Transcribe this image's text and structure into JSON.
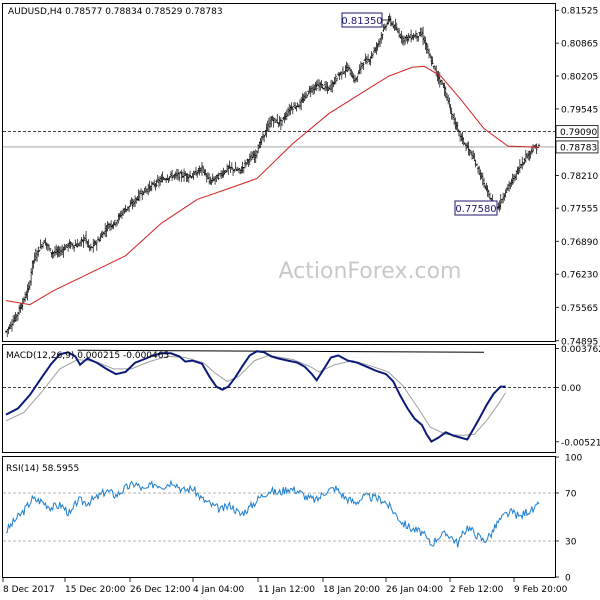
{
  "chart_data": [
    {
      "type": "bar",
      "subtype": "ohlc",
      "title": "AUDUSD,H4  0.78577 0.78834 0.78529 0.78783",
      "watermark": "ActionForex.com",
      "ylim": [
        0.7489,
        0.8165
      ],
      "y_ticks": [
        "0.81525",
        "0.80865",
        "0.80205",
        "0.79545",
        "0.78210",
        "0.77555",
        "0.76890",
        "0.76230",
        "0.75565",
        "0.74895"
      ],
      "x_ticks": [
        "8 Dec 2017",
        "15 Dec 20:00",
        "26 Dec 12:00",
        "4 Jan 04:00",
        "11 Jan 12:00",
        "18 Jan 20:00",
        "26 Jan 04:00",
        "2 Feb 12:00",
        "9 Feb 20:00"
      ],
      "levels": {
        "dashed": "0.79090",
        "current": "0.78783"
      },
      "annotations": [
        "0.81350",
        "0.77580"
      ],
      "series_path": [
        [
          0,
          0.7508
        ],
        [
          8,
          0.7537
        ],
        [
          14,
          0.7568
        ],
        [
          19,
          0.7595
        ],
        [
          22,
          0.7645
        ],
        [
          27,
          0.7672
        ],
        [
          32,
          0.769
        ],
        [
          38,
          0.7666
        ],
        [
          45,
          0.7668
        ],
        [
          52,
          0.7682
        ],
        [
          60,
          0.7681
        ],
        [
          66,
          0.7696
        ],
        [
          70,
          0.7673
        ],
        [
          78,
          0.7694
        ],
        [
          85,
          0.772
        ],
        [
          91,
          0.7726
        ],
        [
          98,
          0.775
        ],
        [
          106,
          0.7765
        ],
        [
          112,
          0.7784
        ],
        [
          118,
          0.7794
        ],
        [
          124,
          0.7803
        ],
        [
          130,
          0.7813
        ],
        [
          138,
          0.782
        ],
        [
          148,
          0.7822
        ],
        [
          156,
          0.782
        ],
        [
          164,
          0.7836
        ],
        [
          170,
          0.7808
        ],
        [
          178,
          0.782
        ],
        [
          186,
          0.7836
        ],
        [
          196,
          0.783
        ],
        [
          202,
          0.7852
        ],
        [
          208,
          0.786
        ],
        [
          214,
          0.7894
        ],
        [
          222,
          0.7933
        ],
        [
          230,
          0.7927
        ],
        [
          238,
          0.7957
        ],
        [
          246,
          0.7964
        ],
        [
          254,
          0.7993
        ],
        [
          262,
          0.8003
        ],
        [
          270,
          0.7994
        ],
        [
          278,
          0.8023
        ],
        [
          286,
          0.8037
        ],
        [
          292,
          0.801
        ],
        [
          298,
          0.8047
        ],
        [
          304,
          0.8055
        ],
        [
          310,
          0.808
        ],
        [
          316,
          0.8113
        ],
        [
          320,
          0.8135
        ],
        [
          326,
          0.8115
        ],
        [
          332,
          0.8095
        ],
        [
          340,
          0.81
        ],
        [
          348,
          0.8105
        ],
        [
          354,
          0.806
        ],
        [
          360,
          0.8026
        ],
        [
          366,
          0.8
        ],
        [
          372,
          0.795
        ],
        [
          378,
          0.791
        ],
        [
          384,
          0.7884
        ],
        [
          390,
          0.786
        ],
        [
          396,
          0.7828
        ],
        [
          402,
          0.779
        ],
        [
          408,
          0.7763
        ],
        [
          412,
          0.7758
        ],
        [
          418,
          0.779
        ],
        [
          424,
          0.7812
        ],
        [
          430,
          0.784
        ],
        [
          436,
          0.7862
        ],
        [
          442,
          0.7877
        ],
        [
          446,
          0.7878
        ]
      ],
      "ma_path": [
        [
          0,
          0.757
        ],
        [
          20,
          0.7562
        ],
        [
          40,
          0.759
        ],
        [
          70,
          0.7625
        ],
        [
          100,
          0.766
        ],
        [
          130,
          0.7725
        ],
        [
          160,
          0.7773
        ],
        [
          190,
          0.7798
        ],
        [
          210,
          0.7815
        ],
        [
          240,
          0.7885
        ],
        [
          270,
          0.7945
        ],
        [
          300,
          0.799
        ],
        [
          320,
          0.802
        ],
        [
          340,
          0.8038
        ],
        [
          350,
          0.804
        ],
        [
          364,
          0.802
        ],
        [
          380,
          0.7975
        ],
        [
          400,
          0.7915
        ],
        [
          420,
          0.788
        ],
        [
          446,
          0.7878
        ]
      ]
    },
    {
      "type": "line",
      "title": "MACD(12,26,9) 0.000215 -0.000465",
      "ylim": [
        -0.0062,
        0.0041
      ],
      "y_ticks": [
        "0.003762",
        "0.00",
        "-0.005216"
      ],
      "series": [
        {
          "values": [
            [
              0,
              -0.0026
            ],
            [
              10,
              -0.002
            ],
            [
              20,
              -0.0007
            ],
            [
              30,
              0.001
            ],
            [
              38,
              0.0023
            ],
            [
              45,
              0.0032
            ],
            [
              52,
              0.0034
            ],
            [
              58,
              0.003
            ],
            [
              62,
              0.0022
            ],
            [
              68,
              0.0028
            ],
            [
              76,
              0.0024
            ],
            [
              84,
              0.0018
            ],
            [
              92,
              0.0013
            ],
            [
              100,
              0.0015
            ],
            [
              108,
              0.0024
            ],
            [
              115,
              0.0027
            ],
            [
              123,
              0.0031
            ],
            [
              130,
              0.0033
            ],
            [
              138,
              0.0033
            ],
            [
              145,
              0.003
            ],
            [
              150,
              0.0025
            ],
            [
              156,
              0.0026
            ],
            [
              164,
              0.0023
            ],
            [
              170,
              0.0011
            ],
            [
              176,
              0.0001
            ],
            [
              181,
              -0.0002
            ],
            [
              186,
              0.0001
            ],
            [
              192,
              0.001
            ],
            [
              198,
              0.0021
            ],
            [
              204,
              0.0031
            ],
            [
              210,
              0.0035
            ],
            [
              216,
              0.0034
            ],
            [
              222,
              0.003
            ],
            [
              228,
              0.0028
            ],
            [
              236,
              0.0026
            ],
            [
              244,
              0.0024
            ],
            [
              250,
              0.002
            ],
            [
              256,
              0.0013
            ],
            [
              260,
              0.0007
            ],
            [
              266,
              0.0018
            ],
            [
              272,
              0.0029
            ],
            [
              278,
              0.0031
            ],
            [
              286,
              0.0026
            ],
            [
              294,
              0.0024
            ],
            [
              302,
              0.002
            ],
            [
              310,
              0.0016
            ],
            [
              318,
              0.0013
            ],
            [
              324,
              0.0006
            ],
            [
              330,
              -0.0008
            ],
            [
              336,
              -0.002
            ],
            [
              342,
              -0.003
            ],
            [
              348,
              -0.0036
            ],
            [
              352,
              -0.0045
            ],
            [
              356,
              -0.0052
            ],
            [
              362,
              -0.0048
            ],
            [
              368,
              -0.0043
            ],
            [
              374,
              -0.0046
            ],
            [
              380,
              -0.0048
            ],
            [
              386,
              -0.005
            ],
            [
              390,
              -0.0042
            ],
            [
              396,
              -0.003
            ],
            [
              402,
              -0.0017
            ],
            [
              408,
              -0.0006
            ],
            [
              414,
              0.0001
            ],
            [
              418,
              0.0001
            ]
          ]
        },
        {
          "values": [
            [
              0,
              -0.0032
            ],
            [
              15,
              -0.0024
            ],
            [
              30,
              -0.0004
            ],
            [
              45,
              0.0018
            ],
            [
              60,
              0.0027
            ],
            [
              75,
              0.0025
            ],
            [
              90,
              0.0018
            ],
            [
              105,
              0.0018
            ],
            [
              120,
              0.0025
            ],
            [
              135,
              0.003
            ],
            [
              150,
              0.0029
            ],
            [
              165,
              0.0024
            ],
            [
              175,
              0.0014
            ],
            [
              185,
              0.0006
            ],
            [
              195,
              0.0011
            ],
            [
              208,
              0.0026
            ],
            [
              220,
              0.0031
            ],
            [
              240,
              0.0027
            ],
            [
              255,
              0.002
            ],
            [
              262,
              0.0015
            ],
            [
              275,
              0.0022
            ],
            [
              290,
              0.0026
            ],
            [
              305,
              0.0021
            ],
            [
              320,
              0.0015
            ],
            [
              332,
              0.0002
            ],
            [
              345,
              -0.002
            ],
            [
              355,
              -0.0038
            ],
            [
              368,
              -0.0045
            ],
            [
              382,
              -0.0046
            ],
            [
              392,
              -0.0045
            ],
            [
              402,
              -0.0032
            ],
            [
              412,
              -0.0016
            ],
            [
              418,
              -0.0005
            ]
          ]
        }
      ],
      "reference_line": [
        [
          60,
          0.0036
        ],
        [
          400,
          0.0034
        ]
      ]
    },
    {
      "type": "line",
      "title": "RSI(14) 58.5955",
      "ylim": [
        0,
        100
      ],
      "y_ticks": [
        "100",
        "70",
        "30",
        "0"
      ],
      "guides": [
        70,
        30
      ],
      "series": [
        {
          "values": [
            [
              0,
              38
            ],
            [
              8,
              48
            ],
            [
              15,
              55
            ],
            [
              22,
              65
            ],
            [
              30,
              63
            ],
            [
              38,
              58
            ],
            [
              46,
              60
            ],
            [
              54,
              52
            ],
            [
              60,
              64
            ],
            [
              68,
              62
            ],
            [
              76,
              66
            ],
            [
              84,
              72
            ],
            [
              92,
              68
            ],
            [
              100,
              74
            ],
            [
              108,
              78
            ],
            [
              116,
              72
            ],
            [
              124,
              78
            ],
            [
              132,
              76
            ],
            [
              140,
              80
            ],
            [
              148,
              72
            ],
            [
              156,
              74
            ],
            [
              164,
              65
            ],
            [
              172,
              60
            ],
            [
              180,
              56
            ],
            [
              188,
              60
            ],
            [
              196,
              52
            ],
            [
              204,
              58
            ],
            [
              212,
              66
            ],
            [
              220,
              72
            ],
            [
              228,
              70
            ],
            [
              236,
              74
            ],
            [
              244,
              72
            ],
            [
              252,
              66
            ],
            [
              260,
              64
            ],
            [
              268,
              72
            ],
            [
              276,
              74
            ],
            [
              284,
              66
            ],
            [
              292,
              62
            ],
            [
              300,
              67
            ],
            [
              308,
              66
            ],
            [
              316,
              64
            ],
            [
              324,
              55
            ],
            [
              332,
              45
            ],
            [
              340,
              40
            ],
            [
              348,
              37
            ],
            [
              356,
              27
            ],
            [
              362,
              34
            ],
            [
              370,
              36
            ],
            [
              378,
              28
            ],
            [
              386,
              42
            ],
            [
              394,
              35
            ],
            [
              400,
              30
            ],
            [
              406,
              36
            ],
            [
              412,
              46
            ],
            [
              418,
              52
            ],
            [
              424,
              54
            ],
            [
              430,
              50
            ],
            [
              436,
              55
            ],
            [
              442,
              56
            ],
            [
              446,
              60
            ]
          ]
        }
      ]
    }
  ]
}
